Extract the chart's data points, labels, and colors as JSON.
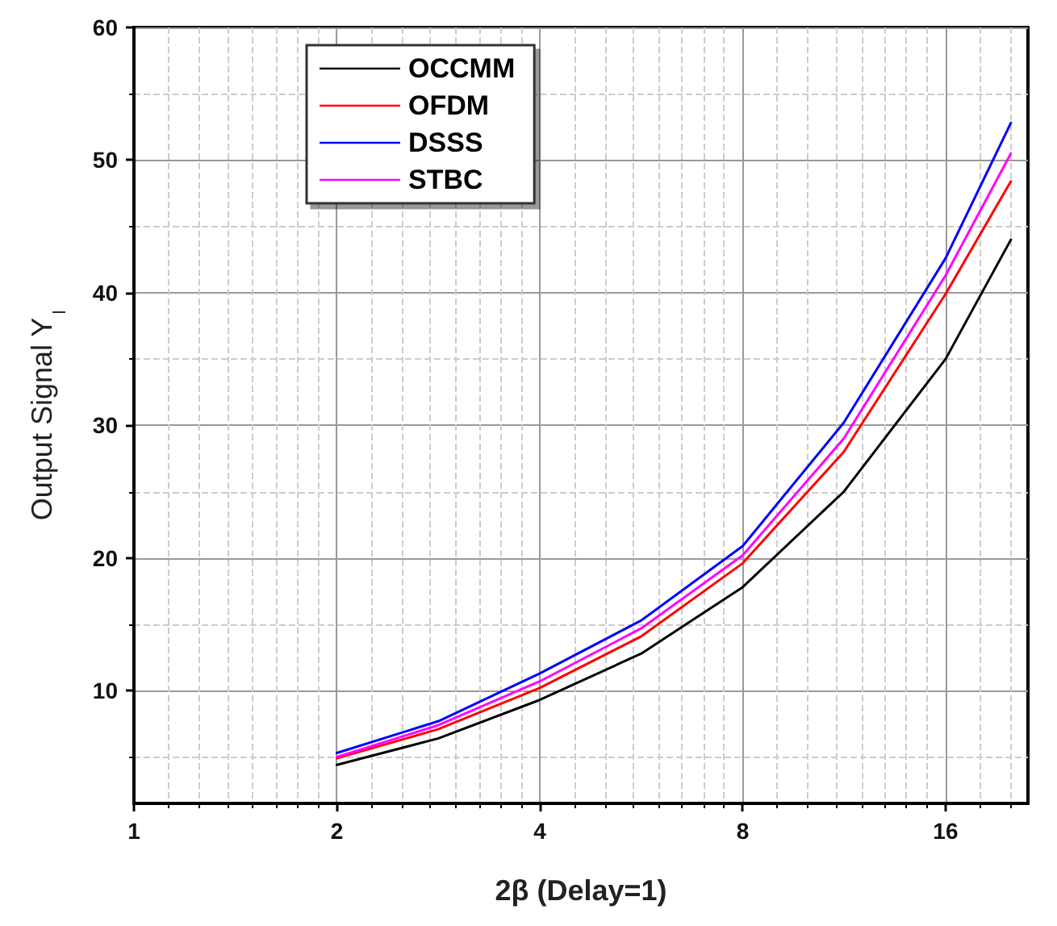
{
  "chart_data": {
    "type": "line",
    "xlabel": "2β (Delay=1)",
    "ylabel": "Output Signal Y$_{l}$",
    "x": [
      2,
      2.83,
      4,
      5.66,
      8,
      11.3,
      16,
      20
    ],
    "series": [
      {
        "name": "OCCMM",
        "color": "#000000",
        "values": [
          4.4,
          6.4,
          9.3,
          12.8,
          17.8,
          25,
          35,
          44
        ]
      },
      {
        "name": "OFDM",
        "color": "#ff0000",
        "values": [
          4.9,
          7.1,
          10.2,
          14.1,
          19.6,
          28,
          39.9,
          48.4
        ]
      },
      {
        "name": "DSSS",
        "color": "#0000ff",
        "values": [
          5.3,
          7.7,
          11.3,
          15.3,
          20.9,
          30.2,
          42.6,
          52.8
        ]
      },
      {
        "name": "STBC",
        "color": "#ff00ff",
        "values": [
          5.0,
          7.4,
          10.7,
          14.7,
          20.2,
          29,
          41.3,
          50.5
        ]
      }
    ],
    "log": "x",
    "xlim": [
      1,
      21.2
    ],
    "xticks": [
      1,
      2,
      4,
      8,
      16
    ],
    "ylim": [
      1.5,
      60
    ],
    "yticks": [
      10,
      20,
      30,
      40,
      50,
      60
    ],
    "grid": true,
    "legend": "top left",
    "marker": "none",
    "line_style": "solid"
  }
}
